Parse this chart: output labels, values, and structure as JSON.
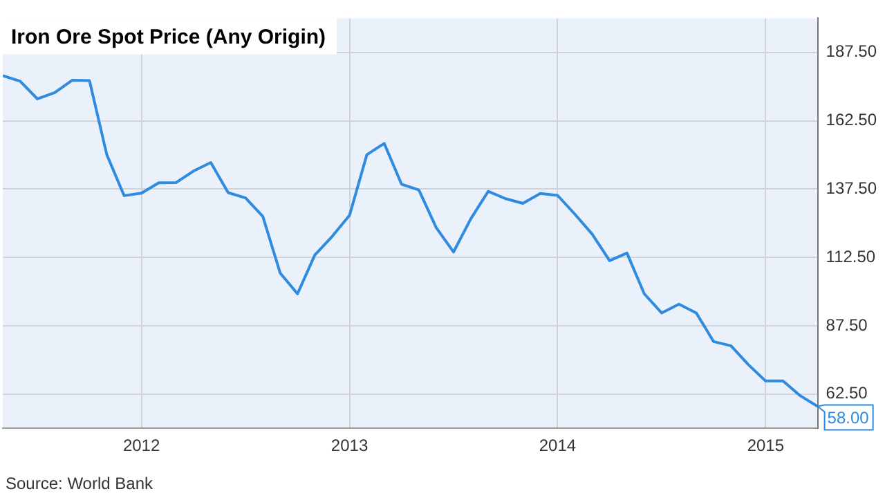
{
  "chart_data": {
    "type": "line",
    "title": "Iron Ore Spot Price (Any Origin)",
    "x": [
      "2011-05",
      "2011-06",
      "2011-07",
      "2011-08",
      "2011-09",
      "2011-10",
      "2011-11",
      "2011-12",
      "2012-01",
      "2012-02",
      "2012-03",
      "2012-04",
      "2012-05",
      "2012-06",
      "2012-07",
      "2012-08",
      "2012-09",
      "2012-10",
      "2012-11",
      "2012-12",
      "2013-01",
      "2013-02",
      "2013-03",
      "2013-04",
      "2013-05",
      "2013-06",
      "2013-07",
      "2013-08",
      "2013-09",
      "2013-10",
      "2013-11",
      "2013-12",
      "2014-01",
      "2014-02",
      "2014-03",
      "2014-04",
      "2014-05",
      "2014-06",
      "2014-07",
      "2014-08",
      "2014-09",
      "2014-10",
      "2014-11",
      "2014-12",
      "2015-01",
      "2015-02",
      "2015-03",
      "2015-04"
    ],
    "series": [
      {
        "color": "#2f8be0",
        "values": [
          179,
          177,
          170.5,
          172.8,
          177.3,
          177.2,
          150.1,
          135.1,
          136,
          139.8,
          139.9,
          144.1,
          147.2,
          136.2,
          134.3,
          127.5,
          106.8,
          99.2,
          113.4,
          120.2,
          127.9,
          150.1,
          154.2,
          139.3,
          137.2,
          123.4,
          114.5,
          126.7,
          136.7,
          134,
          132.3,
          135.9,
          135.2,
          128.3,
          121,
          111.3,
          114.1,
          99.2,
          92.2,
          95.4,
          92.2,
          81.7,
          80.2,
          73.3,
          67.3,
          67.3,
          61.9,
          58
        ]
      }
    ],
    "xlim": [
      "2011-05",
      "2015-04"
    ],
    "xticks": [
      "2012",
      "2013",
      "2014",
      "2015"
    ],
    "ylim": [
      50,
      200
    ],
    "yticks": [
      {
        "value": 62.5,
        "label": "62.50"
      },
      {
        "value": 87.5,
        "label": "87.50"
      },
      {
        "value": 112.5,
        "label": "112.50"
      },
      {
        "value": 137.5,
        "label": "137.50"
      },
      {
        "value": 162.5,
        "label": "162.50"
      },
      {
        "value": 187.5,
        "label": "187.50"
      }
    ],
    "grid": true,
    "legend": false,
    "marker": "none",
    "line_style": "solid",
    "annotations": [
      {
        "text": "58.00",
        "x": "2015-04",
        "y": 58
      },
      "Source: World Bank"
    ]
  }
}
